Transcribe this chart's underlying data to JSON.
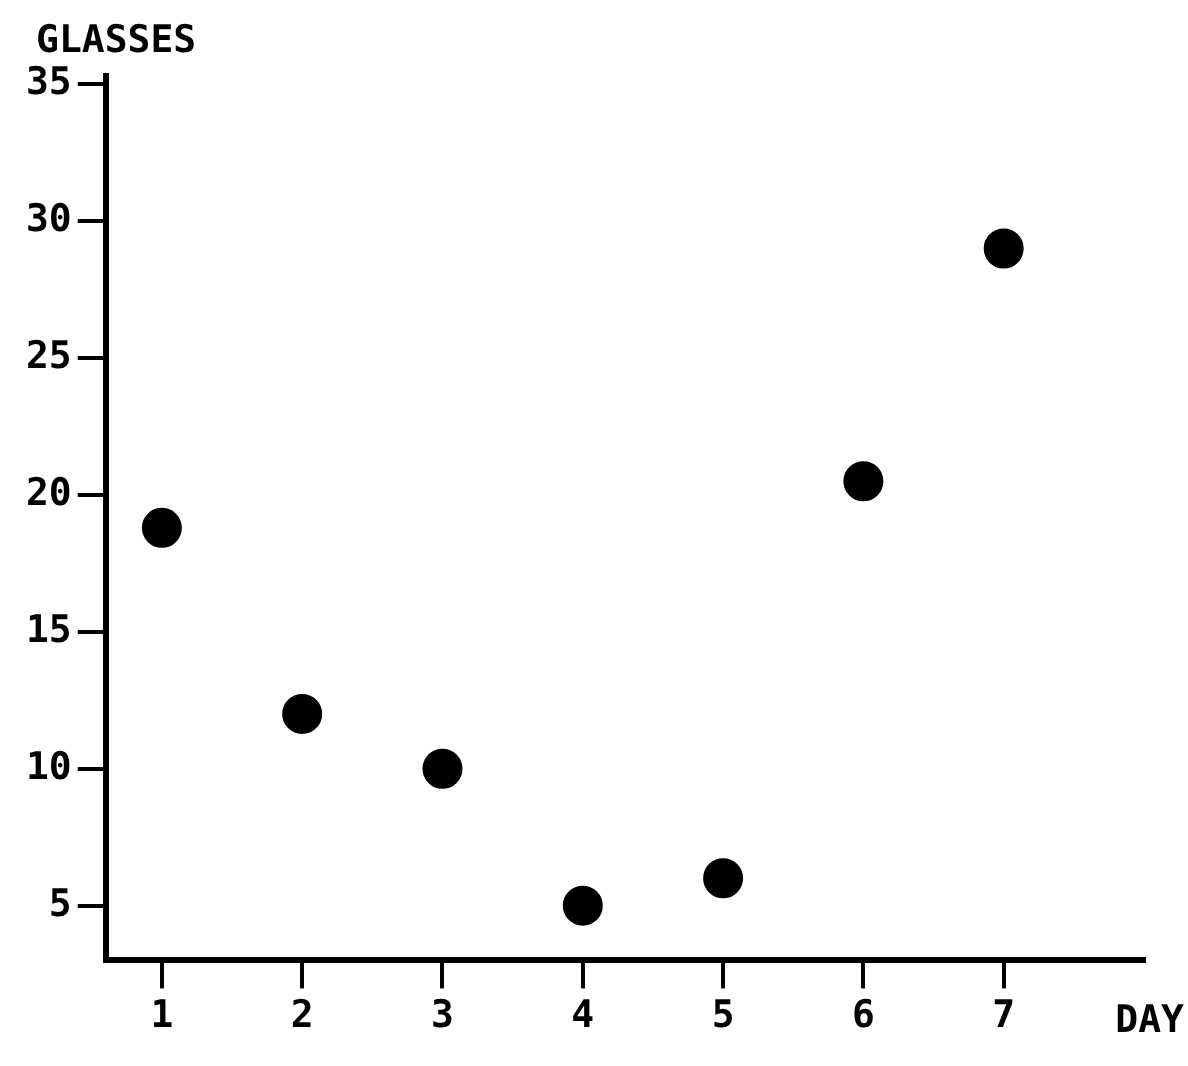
{
  "chart_data": {
    "type": "scatter",
    "xlabel": "DAY",
    "ylabel": "GLASSES",
    "x": [
      1,
      2,
      3,
      4,
      5,
      6,
      7
    ],
    "series": [
      {
        "color": "#000000",
        "values": [
          18.8,
          12,
          10,
          5,
          6,
          20.5,
          29
        ]
      }
    ],
    "xlim": [
      0.6,
      8
    ],
    "xticks": [
      1,
      2,
      3,
      4,
      5,
      6,
      7
    ],
    "ylim": [
      3,
      35.3
    ],
    "yticks": [
      5,
      10,
      15,
      20,
      25,
      30,
      35
    ],
    "grid": false,
    "legend": false,
    "marker": "circle"
  }
}
